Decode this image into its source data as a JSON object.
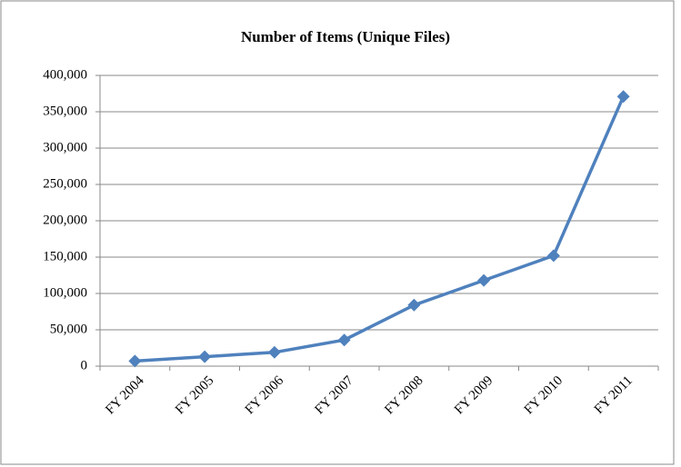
{
  "chart_data": {
    "type": "line",
    "title": "Number of Items (Unique Files)",
    "categories": [
      "FY 2004",
      "FY 2005",
      "FY 2006",
      "FY 2007",
      "FY 2008",
      "FY 2009",
      "FY 2010",
      "FY 2011"
    ],
    "values": [
      7000,
      13000,
      19000,
      36000,
      84000,
      118000,
      152000,
      371000
    ],
    "color": "#4f81bd",
    "ylim": [
      0,
      400000
    ],
    "yticks": [
      0,
      {
        "value": 50000,
        "label": "50,000"
      },
      {
        "value": 100000,
        "label": "100,000"
      },
      {
        "value": 150000,
        "label": "150,000"
      },
      {
        "value": 200000,
        "label": "200,000"
      },
      {
        "value": 250000,
        "label": "250,000"
      },
      {
        "value": 300000,
        "label": "300,000"
      },
      {
        "value": 350000,
        "label": "350,000"
      },
      {
        "value": 400000,
        "label": "400,000"
      }
    ],
    "grid": true
  }
}
